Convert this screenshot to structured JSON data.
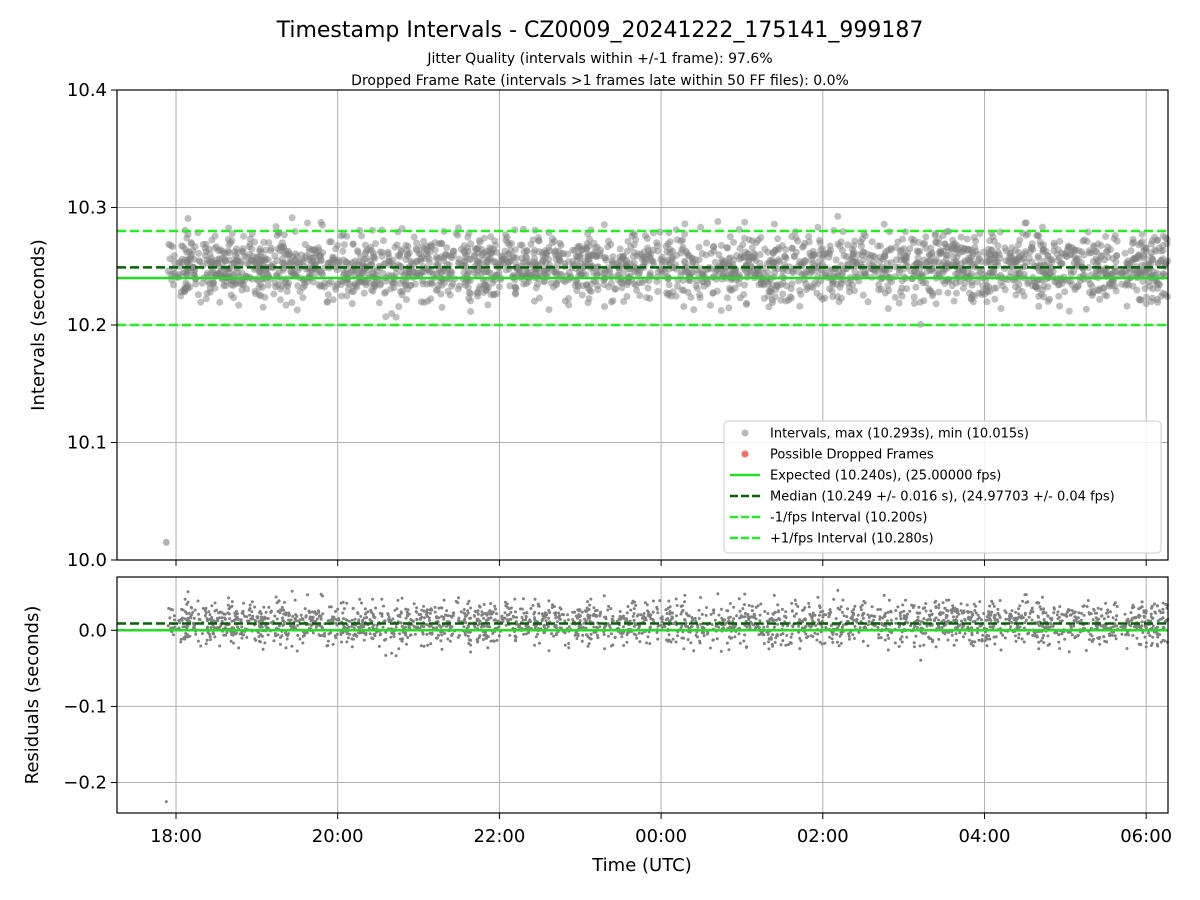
{
  "chart_data": {
    "title": "Timestamp Intervals - CZ0009_20241222_175141_999187",
    "subtitle_lines": [
      "Jitter Quality (intervals within +/-1 frame): 97.6%",
      "Dropped Frame Rate (intervals >1 frames late within 50 FF files): 0.0%"
    ],
    "xlabel": "Time (UTC)",
    "x_time_range_hours": [
      17.27,
      30.27
    ],
    "x_ticks": [
      {
        "label": "18:00",
        "hour": 18
      },
      {
        "label": "20:00",
        "hour": 20
      },
      {
        "label": "22:00",
        "hour": 22
      },
      {
        "label": "00:00",
        "hour": 24
      },
      {
        "label": "02:00",
        "hour": 26
      },
      {
        "label": "04:00",
        "hour": 28
      },
      {
        "label": "06:00",
        "hour": 30
      }
    ],
    "grid": true,
    "colors": {
      "points": "#808080",
      "dropped": "#ff3b3b",
      "expected": "#22dd22",
      "median": "#006400",
      "bounds": "#22ee22"
    },
    "panels": [
      {
        "type": "scatter",
        "ylabel": "Intervals (seconds)",
        "ylim": [
          10.0,
          10.4
        ],
        "y_ticks": [
          "10.0",
          "10.1",
          "10.2",
          "10.3",
          "10.4"
        ],
        "reference_lines": [
          {
            "key": "expected",
            "value": 10.24,
            "style": "solid"
          },
          {
            "key": "median",
            "value": 10.249,
            "style": "dashed"
          },
          {
            "key": "lower",
            "value": 10.2,
            "style": "dashed"
          },
          {
            "key": "upper",
            "value": 10.28,
            "style": "dashed"
          }
        ],
        "series_stats": {
          "count_approx": 4350,
          "center": 10.249,
          "spread": 0.016,
          "max": 10.293,
          "min": 10.015,
          "outlier": {
            "hour": 17.88,
            "value": 10.015
          }
        },
        "legend": {
          "position": "lower-right",
          "entries": [
            {
              "key": "intervals",
              "label": "Intervals, max (10.293s), min (10.015s)",
              "marker": "dot"
            },
            {
              "key": "dropped",
              "label": "Possible Dropped Frames",
              "marker": "dot"
            },
            {
              "key": "expected",
              "label": "Expected (10.240s), (25.00000 fps)",
              "marker": "solid"
            },
            {
              "key": "median",
              "label": "Median (10.249 +/- 0.016 s), (24.97703 +/- 0.04 fps)",
              "marker": "dashed"
            },
            {
              "key": "lower",
              "label": "-1/fps Interval (10.200s)",
              "marker": "dashed"
            },
            {
              "key": "upper",
              "label": "+1/fps Interval (10.280s)",
              "marker": "dashed"
            }
          ]
        }
      },
      {
        "type": "scatter",
        "ylabel": "Residuals (seconds)",
        "ylim": [
          -0.24,
          0.07
        ],
        "y_ticks": [
          {
            "label": "0.0",
            "value": 0.0
          },
          {
            "label": "−0.1",
            "value": -0.1
          },
          {
            "label": "−0.2",
            "value": -0.2
          }
        ],
        "reference_lines": [
          {
            "key": "expected",
            "value": 0.0,
            "style": "solid"
          },
          {
            "key": "median",
            "value": 0.009,
            "style": "dashed"
          }
        ],
        "series_stats": {
          "center": 0.009,
          "spread": 0.016,
          "outlier": {
            "hour": 17.88,
            "value": -0.225
          }
        }
      }
    ]
  }
}
